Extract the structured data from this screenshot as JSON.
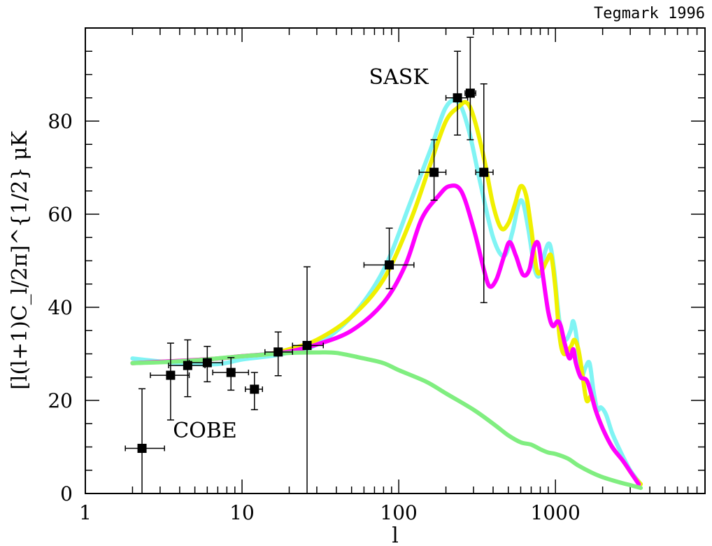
{
  "chart_data": {
    "type": "line",
    "title": "",
    "credit": "Tegmark 1996",
    "xlabel": "l",
    "ylabel": "[l(l+1)C_l/2π]^{1/2} μK",
    "xscale": "log",
    "xlim": [
      1,
      9000
    ],
    "ylim": [
      0,
      100
    ],
    "x_ticks": [
      1,
      10,
      100,
      1000
    ],
    "x_tick_labels": [
      "1",
      "10",
      "100",
      "1000"
    ],
    "y_ticks": [
      0,
      20,
      40,
      60,
      80
    ],
    "y_tick_labels": [
      "0",
      "20",
      "40",
      "60",
      "80"
    ],
    "annotations": [
      {
        "text": "SASK",
        "x": 100,
        "y": 88
      },
      {
        "text": "COBE",
        "x": 5.8,
        "y": 12
      }
    ],
    "series": [
      {
        "color": "#80f4f4",
        "points": [
          [
            2,
            29
          ],
          [
            4,
            28
          ],
          [
            7,
            27.8
          ],
          [
            10,
            28.8
          ],
          [
            15,
            29.5
          ],
          [
            20,
            30.3
          ],
          [
            30,
            32
          ],
          [
            50,
            38
          ],
          [
            80,
            48
          ],
          [
            120,
            63
          ],
          [
            160,
            74
          ],
          [
            200,
            83
          ],
          [
            240,
            84
          ],
          [
            280,
            78
          ],
          [
            330,
            67
          ],
          [
            400,
            55
          ],
          [
            470,
            51
          ],
          [
            530,
            56
          ],
          [
            580,
            62
          ],
          [
            620,
            62.5
          ],
          [
            670,
            57
          ],
          [
            740,
            48
          ],
          [
            800,
            47
          ],
          [
            860,
            52
          ],
          [
            920,
            53.5
          ],
          [
            980,
            48
          ],
          [
            1060,
            37
          ],
          [
            1150,
            33
          ],
          [
            1250,
            35
          ],
          [
            1300,
            37
          ],
          [
            1370,
            33
          ],
          [
            1450,
            25
          ],
          [
            1550,
            27
          ],
          [
            1650,
            28
          ],
          [
            1750,
            22
          ],
          [
            1850,
            18
          ],
          [
            1950,
            18.5
          ],
          [
            2100,
            17
          ],
          [
            2300,
            13
          ],
          [
            2600,
            9
          ],
          [
            3000,
            5
          ],
          [
            3500,
            2
          ]
        ]
      },
      {
        "color": "#f0f000",
        "points": [
          [
            2,
            28
          ],
          [
            4,
            28.5
          ],
          [
            7,
            29
          ],
          [
            10,
            29.5
          ],
          [
            15,
            30
          ],
          [
            20,
            31
          ],
          [
            30,
            33
          ],
          [
            50,
            38
          ],
          [
            80,
            46
          ],
          [
            120,
            59
          ],
          [
            160,
            71
          ],
          [
            200,
            80
          ],
          [
            240,
            83
          ],
          [
            270,
            84
          ],
          [
            300,
            81
          ],
          [
            350,
            72
          ],
          [
            400,
            62
          ],
          [
            450,
            57
          ],
          [
            500,
            58
          ],
          [
            550,
            62
          ],
          [
            600,
            66
          ],
          [
            650,
            64
          ],
          [
            700,
            57
          ],
          [
            760,
            48
          ],
          [
            820,
            48
          ],
          [
            880,
            50
          ],
          [
            940,
            51
          ],
          [
            1000,
            44
          ],
          [
            1060,
            34
          ],
          [
            1130,
            30
          ],
          [
            1250,
            31.5
          ],
          [
            1320,
            33
          ],
          [
            1400,
            31
          ],
          [
            1480,
            26
          ],
          [
            1580,
            20
          ],
          [
            1700,
            21
          ],
          [
            1800,
            18
          ],
          [
            2000,
            14
          ],
          [
            2300,
            10
          ],
          [
            2700,
            7
          ],
          [
            3100,
            4
          ],
          [
            3500,
            2
          ]
        ]
      },
      {
        "color": "#ff00ff",
        "points": [
          [
            2,
            28
          ],
          [
            4,
            28.5
          ],
          [
            7,
            29
          ],
          [
            10,
            29.5
          ],
          [
            15,
            30
          ],
          [
            20,
            30.5
          ],
          [
            30,
            32
          ],
          [
            50,
            35
          ],
          [
            80,
            41
          ],
          [
            110,
            49
          ],
          [
            140,
            59
          ],
          [
            180,
            64
          ],
          [
            210,
            66
          ],
          [
            250,
            65
          ],
          [
            300,
            57
          ],
          [
            350,
            48
          ],
          [
            380,
            44.5
          ],
          [
            420,
            46
          ],
          [
            470,
            51
          ],
          [
            510,
            54
          ],
          [
            560,
            51
          ],
          [
            620,
            47
          ],
          [
            680,
            48
          ],
          [
            730,
            53
          ],
          [
            780,
            53.5
          ],
          [
            830,
            47
          ],
          [
            900,
            39
          ],
          [
            960,
            36
          ],
          [
            1030,
            37
          ],
          [
            1080,
            36
          ],
          [
            1150,
            32
          ],
          [
            1230,
            29
          ],
          [
            1300,
            31
          ],
          [
            1350,
            28
          ],
          [
            1450,
            25
          ],
          [
            1600,
            24
          ],
          [
            1800,
            18
          ],
          [
            2000,
            14
          ],
          [
            2300,
            10
          ],
          [
            2700,
            7
          ],
          [
            3100,
            4
          ],
          [
            3400,
            2
          ]
        ]
      },
      {
        "color": "#80ee80",
        "points": [
          [
            2,
            28
          ],
          [
            3,
            28.2
          ],
          [
            5,
            28.6
          ],
          [
            8,
            29.2
          ],
          [
            12,
            29.7
          ],
          [
            20,
            30.2
          ],
          [
            30,
            30.3
          ],
          [
            40,
            30.2
          ],
          [
            60,
            29
          ],
          [
            80,
            28
          ],
          [
            100,
            26.5
          ],
          [
            150,
            24
          ],
          [
            200,
            21.5
          ],
          [
            300,
            18
          ],
          [
            400,
            15
          ],
          [
            500,
            12.5
          ],
          [
            600,
            11
          ],
          [
            700,
            10.5
          ],
          [
            800,
            9.5
          ],
          [
            900,
            8.8
          ],
          [
            1000,
            8.5
          ],
          [
            1200,
            7.5
          ],
          [
            1400,
            6
          ],
          [
            1700,
            4.5
          ],
          [
            2000,
            3.5
          ],
          [
            2500,
            2.5
          ],
          [
            3000,
            1.8
          ],
          [
            3500,
            1.2
          ]
        ]
      }
    ],
    "data_points": [
      {
        "x": 2.3,
        "y": 9.7,
        "xerr": [
          1.8,
          3.2
        ],
        "yerr": [
          0,
          22.5
        ]
      },
      {
        "x": 3.5,
        "y": 25.4,
        "xerr": [
          2.6,
          4.6
        ],
        "yerr": [
          15.8,
          32.3
        ]
      },
      {
        "x": 4.5,
        "y": 27.5,
        "xerr": [
          3.4,
          5.8
        ],
        "yerr": [
          20.8,
          33
        ]
      },
      {
        "x": 6,
        "y": 28.1,
        "xerr": [
          4.6,
          7.5
        ],
        "yerr": [
          24,
          31.6
        ]
      },
      {
        "x": 8.5,
        "y": 26.0,
        "xerr": [
          6.5,
          11
        ],
        "yerr": [
          22.2,
          29.2
        ]
      },
      {
        "x": 12,
        "y": 22.4,
        "xerr": [
          10.5,
          13.5
        ],
        "yerr": [
          18,
          26
        ]
      },
      {
        "x": 17,
        "y": 30.4,
        "xerr": [
          14,
          21
        ],
        "yerr": [
          25.3,
          34.7
        ]
      },
      {
        "x": 26,
        "y": 31.8,
        "xerr": [
          21,
          33
        ],
        "yerr": [
          0,
          48.7
        ]
      },
      {
        "x": 87,
        "y": 49.1,
        "xerr": [
          60,
          125
        ],
        "yerr": [
          44,
          57
        ]
      },
      {
        "x": 168,
        "y": 69.0,
        "xerr": [
          135,
          200
        ],
        "yerr": [
          63,
          76
        ]
      },
      {
        "x": 237,
        "y": 85.0,
        "xerr": [
          200,
          275
        ],
        "yerr": [
          77,
          95
        ]
      },
      {
        "x": 286,
        "y": 86.0,
        "xerr": [
          265,
          310
        ],
        "yerr": [
          76,
          98
        ]
      },
      {
        "x": 349,
        "y": 69.0,
        "xerr": [
          310,
          400
        ],
        "yerr": [
          41,
          88
        ]
      }
    ]
  }
}
